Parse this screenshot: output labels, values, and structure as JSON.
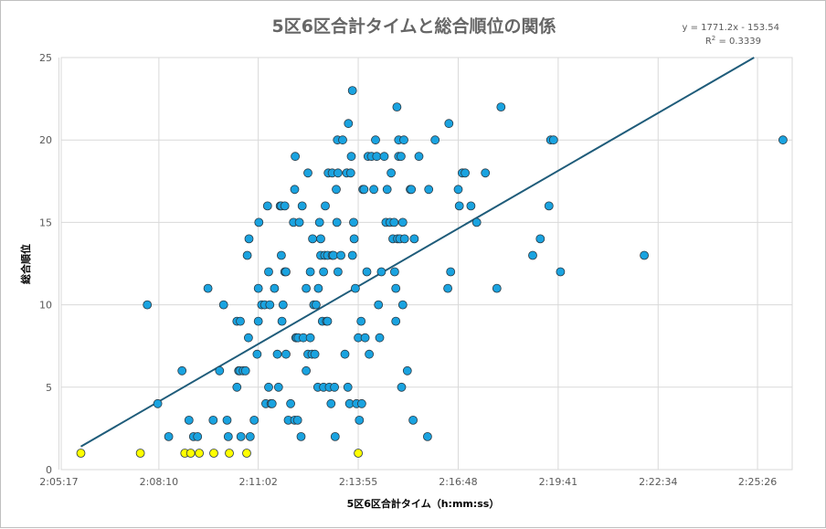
{
  "chart_data": {
    "type": "scatter",
    "title": "5区6区合計タイムと総合順位の関係",
    "xlabel": "5区6区合計タイム（h:mm:ss）",
    "ylabel": "総合順位",
    "xlim_seconds": [
      7521,
      8786
    ],
    "ylim": [
      0,
      25
    ],
    "x_ticks": [
      "2:05:17",
      "2:08:10",
      "2:11:02",
      "2:13:55",
      "2:16:48",
      "2:19:41",
      "2:22:34",
      "2:25:26"
    ],
    "y_ticks": [
      "0",
      "5",
      "10",
      "15",
      "20",
      "25"
    ],
    "grid": true,
    "colors": {
      "blue_point": "#1aa3e0",
      "yellow_point": "#ffff00",
      "trendline": "#1f5c7a",
      "grid": "#d9d9d9"
    },
    "trendline": {
      "type": "linear",
      "equation": "y = 1771.2x - 153.54",
      "r_squared_prefix": "R",
      "r_squared_sup": "2",
      "r_squared_value": " = 0.3339",
      "from": [
        "2:05:55",
        1.4
      ],
      "to": [
        "2:25:20",
        25
      ]
    },
    "series": [
      {
        "color": "yellow",
        "points": [
          [
            "2:05:55",
            1
          ],
          [
            "2:07:38",
            1
          ],
          [
            "2:08:55",
            1
          ],
          [
            "2:09:05",
            1
          ],
          [
            "2:09:20",
            1
          ],
          [
            "2:09:45",
            1
          ],
          [
            "2:10:12",
            1
          ],
          [
            "2:10:42",
            1
          ],
          [
            "2:13:55",
            1
          ]
        ]
      },
      {
        "color": "blue",
        "points": [
          [
            "2:07:50",
            10
          ],
          [
            "2:08:08",
            4
          ],
          [
            "2:08:27",
            2
          ],
          [
            "2:08:50",
            6
          ],
          [
            "2:09:02",
            3
          ],
          [
            "2:09:10",
            2
          ],
          [
            "2:09:17",
            2
          ],
          [
            "2:09:35",
            11
          ],
          [
            "2:09:44",
            3
          ],
          [
            "2:09:55",
            6
          ],
          [
            "2:10:02",
            10
          ],
          [
            "2:10:08",
            3
          ],
          [
            "2:10:10",
            2
          ],
          [
            "2:10:25",
            9
          ],
          [
            "2:10:25",
            5
          ],
          [
            "2:10:28",
            6
          ],
          [
            "2:10:30",
            6
          ],
          [
            "2:10:31",
            9
          ],
          [
            "2:10:32",
            2
          ],
          [
            "2:10:36",
            6
          ],
          [
            "2:10:40",
            6
          ],
          [
            "2:10:43",
            13
          ],
          [
            "2:10:45",
            8
          ],
          [
            "2:10:46",
            14
          ],
          [
            "2:10:48",
            2
          ],
          [
            "2:10:55",
            3
          ],
          [
            "2:11:00",
            7
          ],
          [
            "2:11:02",
            9
          ],
          [
            "2:11:02",
            11
          ],
          [
            "2:11:03",
            15
          ],
          [
            "2:11:08",
            10
          ],
          [
            "2:11:13",
            10
          ],
          [
            "2:11:15",
            4
          ],
          [
            "2:11:18",
            16
          ],
          [
            "2:11:20",
            5
          ],
          [
            "2:11:20",
            12
          ],
          [
            "2:11:22",
            10
          ],
          [
            "2:11:24",
            4
          ],
          [
            "2:11:26",
            4
          ],
          [
            "2:11:30",
            11
          ],
          [
            "2:11:35",
            7
          ],
          [
            "2:11:37",
            5
          ],
          [
            "2:11:40",
            16
          ],
          [
            "2:11:42",
            16
          ],
          [
            "2:11:42",
            13
          ],
          [
            "2:11:43",
            9
          ],
          [
            "2:11:45",
            10
          ],
          [
            "2:11:48",
            16
          ],
          [
            "2:11:48",
            12
          ],
          [
            "2:11:50",
            12
          ],
          [
            "2:11:50",
            7
          ],
          [
            "2:11:54",
            3
          ],
          [
            "2:11:58",
            4
          ],
          [
            "2:12:03",
            15
          ],
          [
            "2:12:05",
            3
          ],
          [
            "2:12:05",
            17
          ],
          [
            "2:12:06",
            19
          ],
          [
            "2:12:07",
            8
          ],
          [
            "2:12:08",
            8
          ],
          [
            "2:12:10",
            3
          ],
          [
            "2:12:11",
            8
          ],
          [
            "2:12:13",
            15
          ],
          [
            "2:12:16",
            2
          ],
          [
            "2:12:18",
            16
          ],
          [
            "2:12:20",
            8
          ],
          [
            "2:12:25",
            11
          ],
          [
            "2:12:25",
            6
          ],
          [
            "2:12:28",
            18
          ],
          [
            "2:12:28",
            7
          ],
          [
            "2:12:32",
            8
          ],
          [
            "2:12:32",
            12
          ],
          [
            "2:12:35",
            7
          ],
          [
            "2:12:36",
            14
          ],
          [
            "2:12:38",
            10
          ],
          [
            "2:12:40",
            7
          ],
          [
            "2:12:42",
            10
          ],
          [
            "2:12:45",
            5
          ],
          [
            "2:12:46",
            11
          ],
          [
            "2:12:48",
            15
          ],
          [
            "2:12:50",
            13
          ],
          [
            "2:12:50",
            14
          ],
          [
            "2:12:53",
            9
          ],
          [
            "2:12:55",
            12
          ],
          [
            "2:12:55",
            5
          ],
          [
            "2:12:57",
            13
          ],
          [
            "2:12:58",
            16
          ],
          [
            "2:13:00",
            9
          ],
          [
            "2:13:02",
            9
          ],
          [
            "2:13:02",
            13
          ],
          [
            "2:13:03",
            18
          ],
          [
            "2:13:05",
            5
          ],
          [
            "2:13:08",
            4
          ],
          [
            "2:13:10",
            18
          ],
          [
            "2:13:10",
            13
          ],
          [
            "2:13:12",
            13
          ],
          [
            "2:13:14",
            5
          ],
          [
            "2:13:15",
            2
          ],
          [
            "2:13:17",
            17
          ],
          [
            "2:13:18",
            15
          ],
          [
            "2:13:19",
            20
          ],
          [
            "2:13:20",
            18
          ],
          [
            "2:13:20",
            12
          ],
          [
            "2:13:25",
            13
          ],
          [
            "2:13:28",
            20
          ],
          [
            "2:13:32",
            7
          ],
          [
            "2:13:35",
            18
          ],
          [
            "2:13:37",
            5
          ],
          [
            "2:13:38",
            21
          ],
          [
            "2:13:40",
            4
          ],
          [
            "2:13:42",
            18
          ],
          [
            "2:13:43",
            19
          ],
          [
            "2:13:45",
            13
          ],
          [
            "2:13:45",
            23
          ],
          [
            "2:13:47",
            15
          ],
          [
            "2:13:48",
            14
          ],
          [
            "2:13:50",
            11
          ],
          [
            "2:13:52",
            4
          ],
          [
            "2:13:55",
            8
          ],
          [
            "2:13:57",
            3
          ],
          [
            "2:14:00",
            9
          ],
          [
            "2:14:01",
            4
          ],
          [
            "2:14:03",
            17
          ],
          [
            "2:14:05",
            17
          ],
          [
            "2:14:07",
            8
          ],
          [
            "2:14:10",
            12
          ],
          [
            "2:14:12",
            19
          ],
          [
            "2:14:14",
            7
          ],
          [
            "2:14:18",
            19
          ],
          [
            "2:14:22",
            17
          ],
          [
            "2:14:25",
            20
          ],
          [
            "2:14:27",
            19
          ],
          [
            "2:14:30",
            10
          ],
          [
            "2:14:32",
            8
          ],
          [
            "2:14:35",
            12
          ],
          [
            "2:14:40",
            19
          ],
          [
            "2:14:43",
            15
          ],
          [
            "2:14:45",
            17
          ],
          [
            "2:14:50",
            15
          ],
          [
            "2:14:52",
            18
          ],
          [
            "2:14:55",
            14
          ],
          [
            "2:14:57",
            15
          ],
          [
            "2:14:58",
            12
          ],
          [
            "2:15:00",
            9
          ],
          [
            "2:15:00",
            11
          ],
          [
            "2:15:02",
            22
          ],
          [
            "2:15:03",
            14
          ],
          [
            "2:15:05",
            19
          ],
          [
            "2:15:05",
            20
          ],
          [
            "2:15:07",
            14
          ],
          [
            "2:15:09",
            19
          ],
          [
            "2:15:10",
            5
          ],
          [
            "2:15:12",
            15
          ],
          [
            "2:15:12",
            10
          ],
          [
            "2:15:14",
            20
          ],
          [
            "2:15:15",
            14
          ],
          [
            "2:15:20",
            6
          ],
          [
            "2:15:25",
            17
          ],
          [
            "2:15:27",
            17
          ],
          [
            "2:15:30",
            3
          ],
          [
            "2:15:32",
            14
          ],
          [
            "2:15:40",
            19
          ],
          [
            "2:15:55",
            2
          ],
          [
            "2:15:57",
            17
          ],
          [
            "2:16:08",
            20
          ],
          [
            "2:16:30",
            11
          ],
          [
            "2:16:32",
            21
          ],
          [
            "2:16:35",
            12
          ],
          [
            "2:16:48",
            17
          ],
          [
            "2:16:50",
            16
          ],
          [
            "2:16:55",
            18
          ],
          [
            "2:17:00",
            18
          ],
          [
            "2:17:10",
            16
          ],
          [
            "2:17:20",
            15
          ],
          [
            "2:17:35",
            18
          ],
          [
            "2:17:55",
            11
          ],
          [
            "2:18:02",
            22
          ],
          [
            "2:18:57",
            13
          ],
          [
            "2:19:10",
            14
          ],
          [
            "2:19:25",
            16
          ],
          [
            "2:19:28",
            20
          ],
          [
            "2:19:33",
            20
          ],
          [
            "2:19:45",
            12
          ],
          [
            "2:22:10",
            13
          ],
          [
            "2:26:10",
            20
          ]
        ]
      }
    ]
  }
}
